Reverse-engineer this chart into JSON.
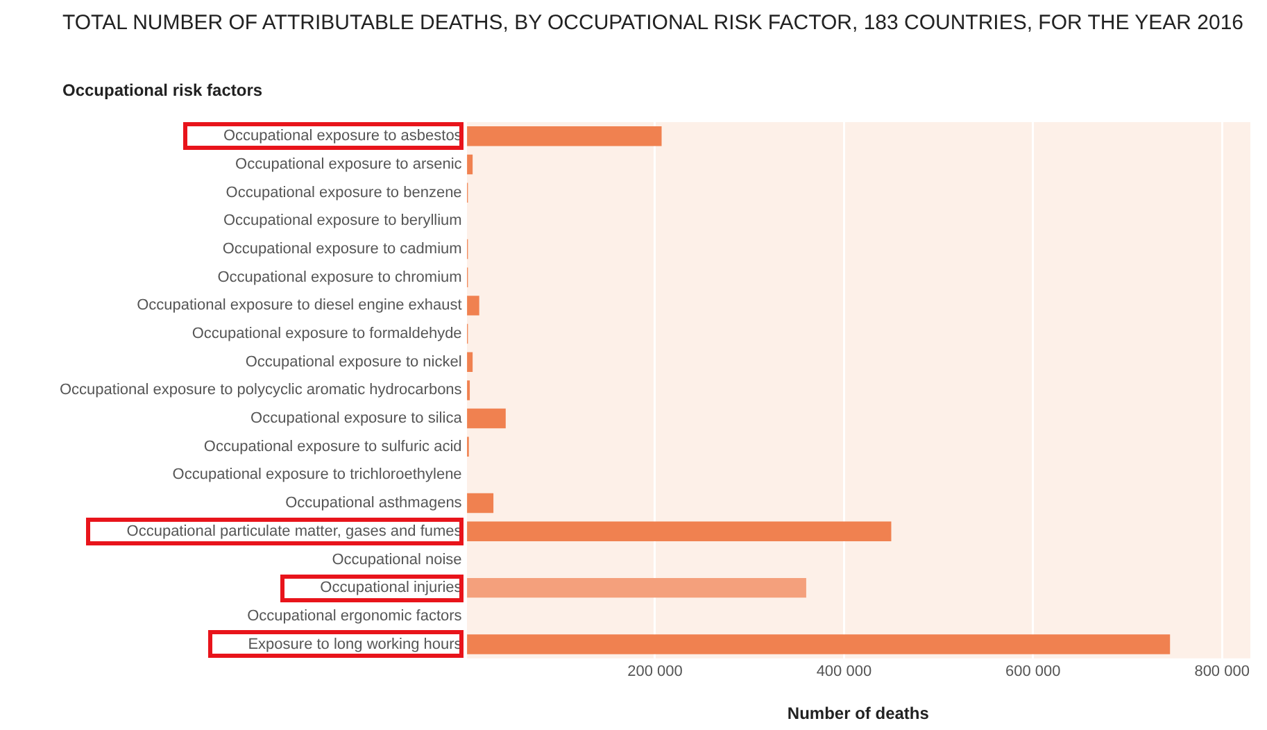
{
  "chart_data": {
    "type": "bar",
    "orientation": "horizontal",
    "title": "TOTAL NUMBER OF ATTRIBUTABLE DEATHS, BY OCCUPATIONAL RISK FACTOR, 183 COUNTRIES, FOR THE YEAR 2016",
    "ylabel": "Occupational risk factors",
    "xlabel": "Number of deaths",
    "categories": [
      "Occupational exposure to asbestos",
      "Occupational exposure to arsenic",
      "Occupational exposure to benzene",
      "Occupational exposure to beryllium",
      "Occupational exposure to cadmium",
      "Occupational exposure to chromium",
      "Occupational exposure to diesel engine exhaust",
      "Occupational exposure to formaldehyde",
      "Occupational exposure to nickel",
      "Occupational exposure to polycyclic aromatic hydrocarbons",
      "Occupational exposure to silica",
      "Occupational exposure to sulfuric acid",
      "Occupational exposure to trichloroethylene",
      "Occupational asthmagens",
      "Occupational particulate matter, gases and fumes",
      "Occupational noise",
      "Occupational injuries",
      "Occupational ergonomic factors",
      "Exposure to long working hours"
    ],
    "values": [
      207000,
      7000,
      2000,
      0,
      2000,
      2000,
      14000,
      2000,
      7000,
      4000,
      42000,
      3000,
      0,
      29000,
      450000,
      0,
      360000,
      0,
      745000
    ],
    "colors": [
      "#f08150",
      "#f08150",
      "#f08150",
      "#f08150",
      "#f08150",
      "#f08150",
      "#f08150",
      "#f08150",
      "#f08150",
      "#f08150",
      "#f08150",
      "#f08150",
      "#f08150",
      "#f08150",
      "#f08150",
      "#f08150",
      "#f4a07c",
      "#f08150",
      "#f08150"
    ],
    "xlim": [
      0,
      830000
    ],
    "xticks": [
      {
        "value": 0,
        "label": null
      },
      {
        "value": 200000,
        "label": "200 000"
      },
      {
        "value": 400000,
        "label": "400 000"
      },
      {
        "value": 600000,
        "label": "600 000"
      },
      {
        "value": 800000,
        "label": "800 000"
      }
    ],
    "grid": "x"
  }
}
